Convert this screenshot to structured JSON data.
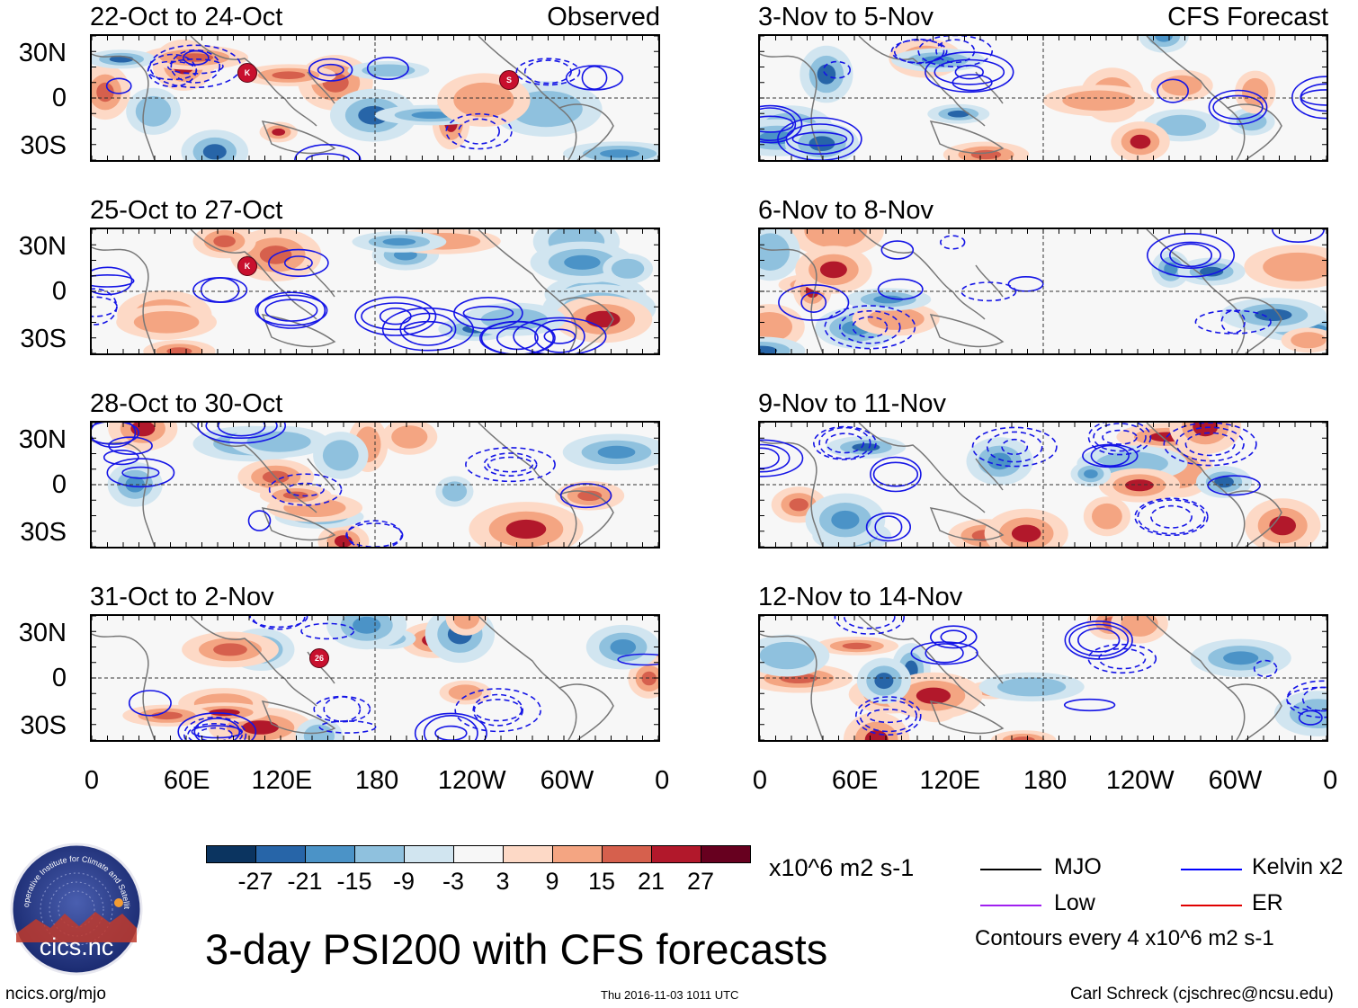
{
  "panels": [
    {
      "title": "22-Oct to 24-Oct",
      "label": "Observed",
      "storms": [
        "K",
        "S"
      ]
    },
    {
      "title": "3-Nov to 5-Nov",
      "label": "CFS Forecast",
      "storms": []
    },
    {
      "title": "25-Oct to 27-Oct",
      "label": "",
      "storms": [
        "K"
      ]
    },
    {
      "title": "6-Nov to 8-Nov",
      "label": "",
      "storms": []
    },
    {
      "title": "28-Oct to 30-Oct",
      "label": "",
      "storms": []
    },
    {
      "title": "9-Nov to 11-Nov",
      "label": "",
      "storms": []
    },
    {
      "title": "31-Oct to 2-Nov",
      "label": "",
      "storms": [
        "26"
      ]
    },
    {
      "title": "12-Nov to 14-Nov",
      "label": "",
      "storms": []
    }
  ],
  "lat_labels": [
    "30N",
    "0",
    "30S"
  ],
  "lon_labels": [
    "0",
    "60E",
    "120E",
    "180",
    "120W",
    "60W",
    "0"
  ],
  "colorbar": {
    "ticks": [
      "-27",
      "-21",
      "-15",
      "-9",
      "-3",
      "3",
      "9",
      "15",
      "21",
      "27"
    ],
    "colors": [
      "#0b3460",
      "#2765a8",
      "#4b93c7",
      "#8fc1de",
      "#d1e5f0",
      "#f7f7f7",
      "#fdd9c6",
      "#f4a582",
      "#d6604d",
      "#b2182b",
      "#67001f"
    ],
    "units": "x10^6 m2 s-1"
  },
  "legend": {
    "items": [
      {
        "label": "MJO",
        "color": "#000000"
      },
      {
        "label": "Kelvin x2",
        "color": "#0000ff"
      },
      {
        "label": "Low",
        "color": "#a020f0"
      },
      {
        "label": "ER",
        "color": "#e00000"
      }
    ],
    "contours": "Contours every 4 x10^6 m2 s-1"
  },
  "title": "3-day PSI200 with CFS forecasts",
  "logo": {
    "arc_text": "Cooperative Institute for Climate and Satellites",
    "name": "cics.nc"
  },
  "footer": {
    "left": "ncics.org/mjo",
    "center": "Thu 2016-11-03 1011 UTC",
    "right": "Carl Schreck (cjschrec@ncsu.edu)"
  },
  "colors": {
    "blue_contour": "#1515e6",
    "red_fill": "#d6604d",
    "blue_fill": "#4b93c7"
  }
}
